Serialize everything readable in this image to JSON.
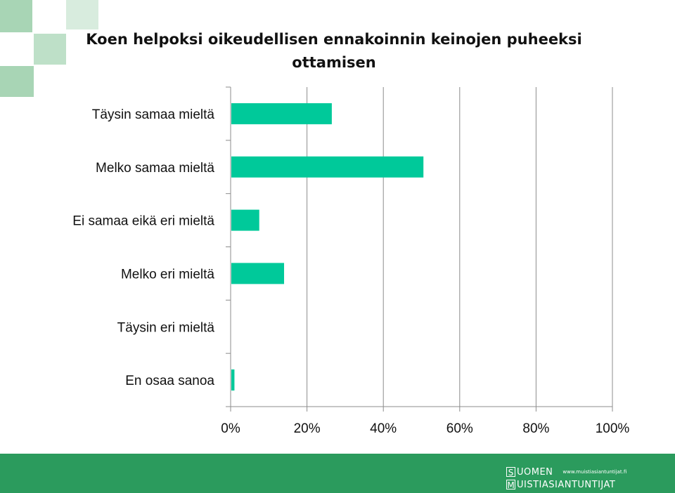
{
  "title": "Koen helpoksi oikeudellisen ennakoinnin keinojen puheeksi ottamisen",
  "chart_data": {
    "type": "bar",
    "orientation": "horizontal",
    "title": "Koen helpoksi oikeudellisen ennakoinnin keinojen puheeksi ottamisen",
    "categories": [
      "Täysin samaa mieltä",
      "Melko samaa mieltä",
      "Ei samaa eikä eri mieltä",
      "Melko eri mieltä",
      "Täysin eri mieltä",
      "En osaa sanoa"
    ],
    "values": [
      26.5,
      50.5,
      7.5,
      14,
      0,
      1
    ],
    "xlim": [
      0,
      100
    ],
    "x_ticks": [
      "0%",
      "20%",
      "40%",
      "60%",
      "80%",
      "100%"
    ],
    "grid": true,
    "bar_color": "#00c99a"
  },
  "footer": {
    "logo_line1_letter": "S",
    "logo_line1_word": "UOMEN",
    "logo_line2_letter": "M",
    "logo_line2_word": "UISTIASIANTUNTIJAT",
    "url": "www.muistiasiantuntijat.fi",
    "color": "#2b9b5d"
  }
}
